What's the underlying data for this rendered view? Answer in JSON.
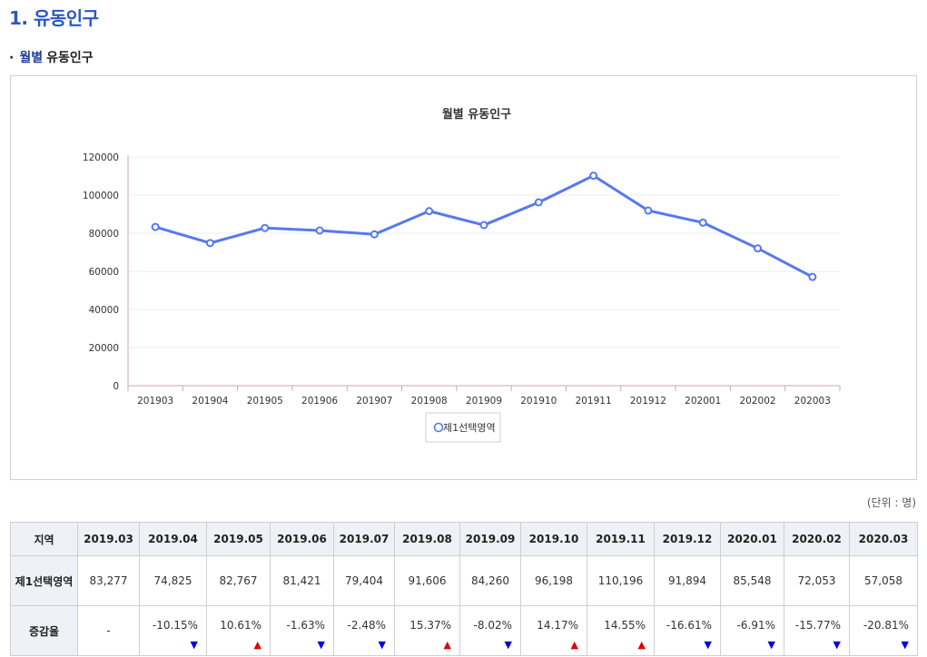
{
  "section_title": "1. 유동인구",
  "subsection": {
    "bullet": "·",
    "accent": "월별",
    "title": "유동인구"
  },
  "unit_note": "(단위 : 명)",
  "chart_data": {
    "type": "line",
    "title": "월별 유동인구",
    "xlabel": "",
    "ylabel": "",
    "ylim": [
      0,
      120000
    ],
    "yticks": [
      "0",
      "20000",
      "40000",
      "60000",
      "80000",
      "100000",
      "120000"
    ],
    "categories": [
      "201903",
      "201904",
      "201905",
      "201906",
      "201907",
      "201908",
      "201909",
      "201910",
      "201911",
      "201912",
      "202001",
      "202002",
      "202003"
    ],
    "series": [
      {
        "name": "제1선택영역",
        "color": "#5779ee",
        "values": [
          83277,
          74825,
          82767,
          81421,
          79404,
          91606,
          84260,
          96198,
          110196,
          91894,
          85548,
          72053,
          57058
        ]
      }
    ],
    "grid": true,
    "legend": "bottom-center"
  },
  "table": {
    "region_header": "지역",
    "columns": [
      "2019.03",
      "2019.04",
      "2019.05",
      "2019.06",
      "2019.07",
      "2019.08",
      "2019.09",
      "2019.10",
      "2019.11",
      "2019.12",
      "2020.01",
      "2020.02",
      "2020.03"
    ],
    "row1_label": "제1선택영역",
    "row1_values": [
      "83,277",
      "74,825",
      "82,767",
      "81,421",
      "79,404",
      "91,606",
      "84,260",
      "96,198",
      "110,196",
      "91,894",
      "85,548",
      "72,053",
      "57,058"
    ],
    "row2_label": "증감율",
    "row2_values": [
      "-",
      "-10.15%",
      "10.61%",
      "-1.63%",
      "-2.48%",
      "15.37%",
      "-8.02%",
      "14.17%",
      "14.55%",
      "-16.61%",
      "-6.91%",
      "-15.77%",
      "-20.81%"
    ],
    "row2_dirs": [
      "none",
      "down",
      "up",
      "down",
      "down",
      "up",
      "down",
      "up",
      "up",
      "down",
      "down",
      "down",
      "down"
    ],
    "up_symbol": "▲",
    "down_symbol": "▼",
    "up_color": "#e00000",
    "down_color": "#0000e0"
  }
}
